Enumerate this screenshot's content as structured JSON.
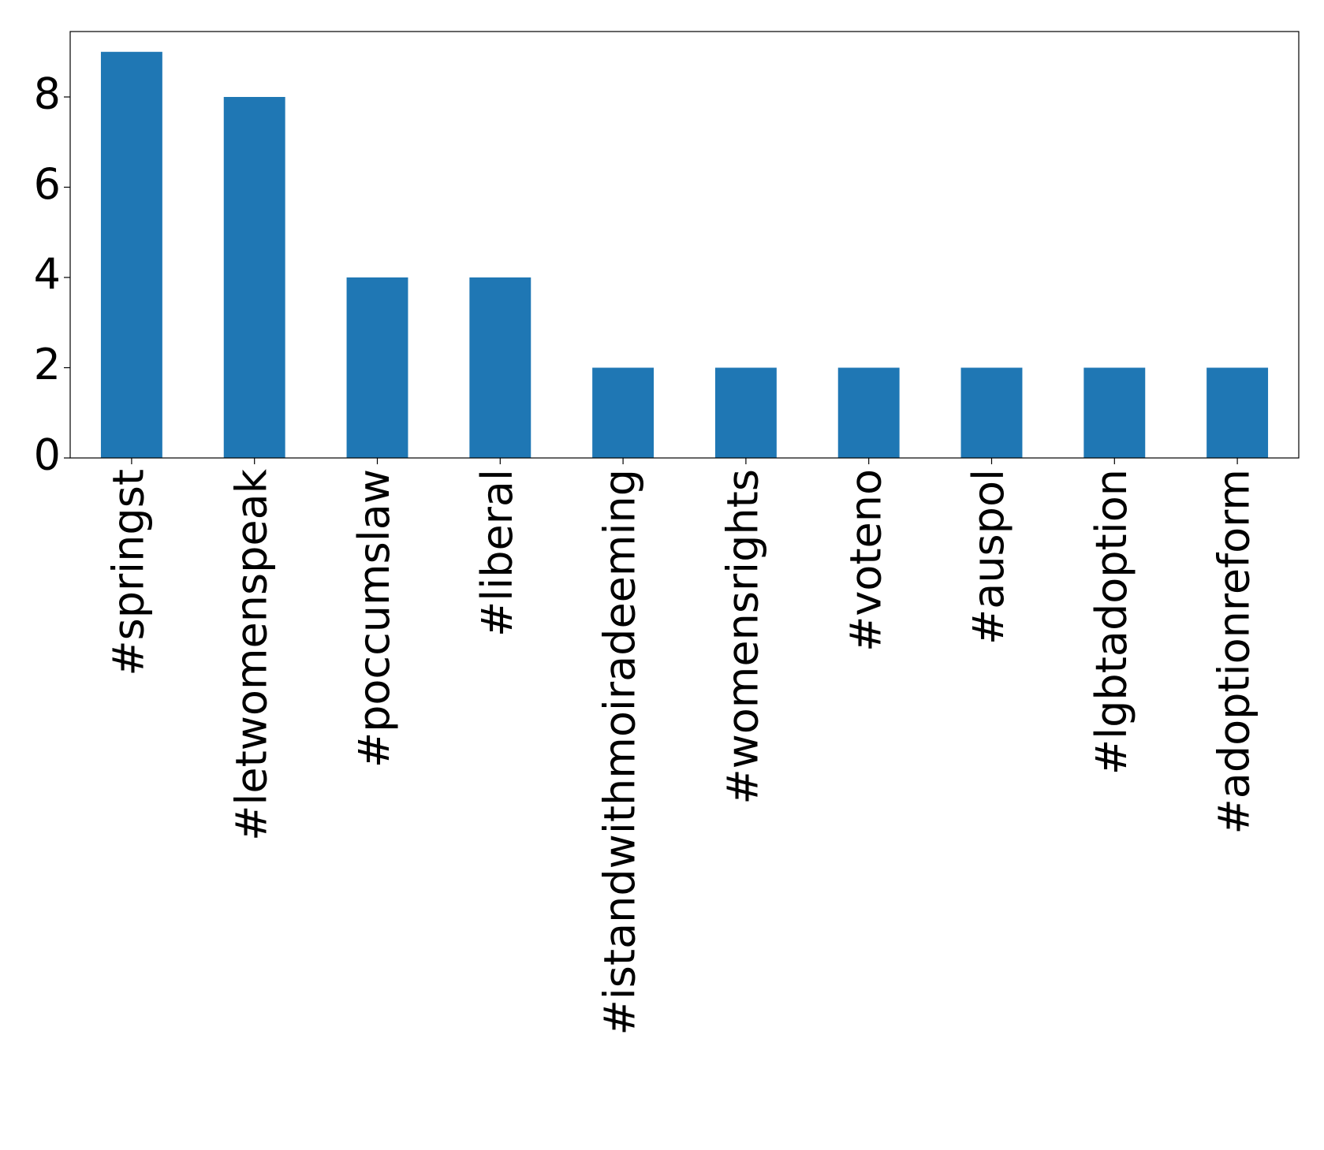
{
  "chart_data": {
    "type": "bar",
    "categories": [
      "#springst",
      "#letwomenspeak",
      "#poccumslaw",
      "#liberal",
      "#istandwithmoiradeeming",
      "#womensrights",
      "#voteno",
      "#auspol",
      "#lgbtadoption",
      "#adoptionreform"
    ],
    "values": [
      9,
      8,
      4,
      4,
      2,
      2,
      2,
      2,
      2,
      2
    ],
    "color": "#1f77b4",
    "ylim": [
      0,
      9.45
    ],
    "yticks": [
      0,
      2,
      4,
      6,
      8
    ],
    "grid": false
  }
}
